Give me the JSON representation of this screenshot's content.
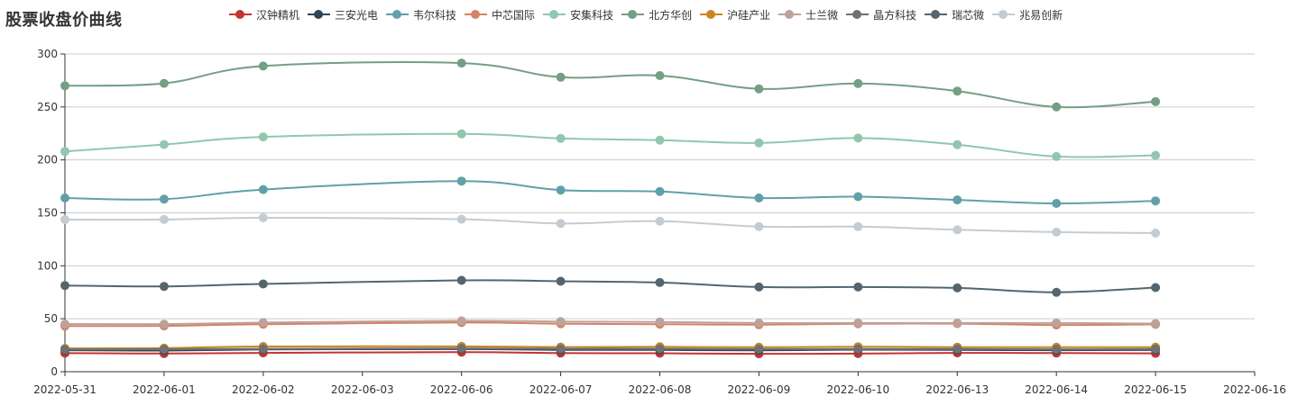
{
  "chart_data": {
    "type": "line",
    "title": "股票收盘价曲线",
    "xlabel": "",
    "ylabel": "",
    "ylim": [
      0,
      300
    ],
    "yticks": [
      0,
      50,
      100,
      150,
      200,
      250,
      300
    ],
    "grid": true,
    "legend_position": "top",
    "x_axis_labels": [
      "2022-05-31",
      "2022-06-01",
      "2022-06-02",
      "2022-06-03",
      "2022-06-06",
      "2022-06-07",
      "2022-06-08",
      "2022-06-09",
      "2022-06-10",
      "2022-06-13",
      "2022-06-14",
      "2022-06-15",
      "2022-06-16"
    ],
    "x": [
      "2022-05-31",
      "2022-06-01",
      "2022-06-02",
      "2022-06-06",
      "2022-06-07",
      "2022-06-08",
      "2022-06-09",
      "2022-06-10",
      "2022-06-13",
      "2022-06-14",
      "2022-06-15"
    ],
    "x_index": [
      0,
      1,
      2,
      4,
      5,
      6,
      7,
      8,
      9,
      10,
      11
    ],
    "series": [
      {
        "name": "汉钟精机",
        "color": "#c23531",
        "values": [
          17.5,
          17.2,
          17.8,
          18.4,
          17.6,
          17.4,
          16.9,
          17.1,
          17.8,
          17.6,
          17.3
        ]
      },
      {
        "name": "三安光电",
        "color": "#2f4554",
        "values": [
          20.3,
          20.0,
          21.0,
          21.3,
          20.6,
          20.6,
          20.1,
          20.8,
          20.6,
          20.3,
          20.6
        ]
      },
      {
        "name": "韦尔科技",
        "color": "#61a0a8",
        "values": [
          164.0,
          162.9,
          172.0,
          180.0,
          171.5,
          170.1,
          164.0,
          165.3,
          162.2,
          158.9,
          161.3
        ]
      },
      {
        "name": "中芯国际",
        "color": "#d48265",
        "values": [
          43.1,
          43.3,
          44.8,
          46.4,
          45.3,
          44.9,
          44.4,
          45.3,
          45.4,
          44.1,
          44.7
        ]
      },
      {
        "name": "安集科技",
        "color": "#91c7ae",
        "values": [
          208.0,
          214.5,
          221.7,
          224.5,
          220.3,
          218.7,
          216.0,
          220.6,
          214.4,
          203.2,
          204.3
        ]
      },
      {
        "name": "北方华创",
        "color": "#749f83",
        "values": [
          270.0,
          272.3,
          288.6,
          291.4,
          278.1,
          279.6,
          267.1,
          272.1,
          265.0,
          250.0,
          255.0
        ]
      },
      {
        "name": "沪硅产业",
        "color": "#ca8622",
        "values": [
          22.0,
          22.3,
          23.8,
          23.9,
          23.3,
          23.5,
          23.1,
          23.6,
          23.2,
          23.1,
          23.1
        ]
      },
      {
        "name": "士兰微",
        "color": "#bda29a",
        "values": [
          45.0,
          45.0,
          46.4,
          48.0,
          47.3,
          47.0,
          46.0,
          46.0,
          46.0,
          46.0,
          45.5
        ]
      },
      {
        "name": "晶方科技",
        "color": "#6e7074",
        "values": [
          21.0,
          21.2,
          21.6,
          22.0,
          21.6,
          21.7,
          21.3,
          21.5,
          21.4,
          21.2,
          21.4
        ]
      },
      {
        "name": "瑞芯微",
        "color": "#546570",
        "values": [
          81.4,
          80.6,
          82.9,
          86.3,
          85.4,
          84.2,
          80.0,
          80.0,
          79.1,
          75.0,
          79.5
        ]
      },
      {
        "name": "兆易创新",
        "color": "#c4ccd3",
        "values": [
          143.6,
          143.7,
          145.3,
          144.0,
          140.0,
          142.2,
          137.0,
          137.0,
          134.0,
          131.8,
          130.9
        ]
      }
    ]
  }
}
